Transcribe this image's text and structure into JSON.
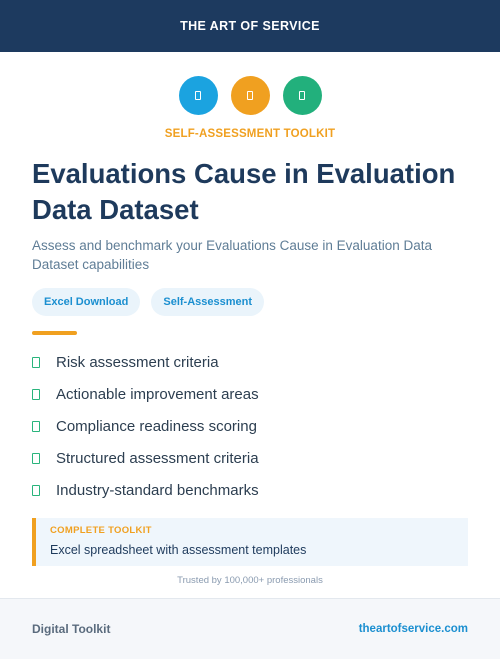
{
  "header": {
    "brand": "THE ART OF SERVICE"
  },
  "icons": [
    {
      "name": "document-icon",
      "color": "#1ba3e0"
    },
    {
      "name": "chart-icon",
      "color": "#f0a020"
    },
    {
      "name": "checklist-icon",
      "color": "#22b07c"
    }
  ],
  "eyebrow": "SELF-ASSESSMENT TOOLKIT",
  "title": "Evaluations Cause in Evaluation Data Dataset",
  "subtitle": "Assess and benchmark your Evaluations Cause in Evaluation Data Dataset capabilities",
  "tags": [
    "Excel Download",
    "Self-Assessment"
  ],
  "features": [
    "Risk assessment criteria",
    "Actionable improvement areas",
    "Compliance readiness scoring",
    "Structured assessment criteria",
    "Industry-standard benchmarks"
  ],
  "callout": {
    "title": "COMPLETE TOOLKIT",
    "text": "Excel spreadsheet with assessment templates"
  },
  "trust": "Trusted by 100,000+ professionals",
  "footer": {
    "left": "Digital Toolkit",
    "right": "theartofservice.com"
  },
  "colors": {
    "navy": "#1d3a5f",
    "accent": "#f0a020",
    "link": "#1b8fd0",
    "check": "#29b47c"
  }
}
